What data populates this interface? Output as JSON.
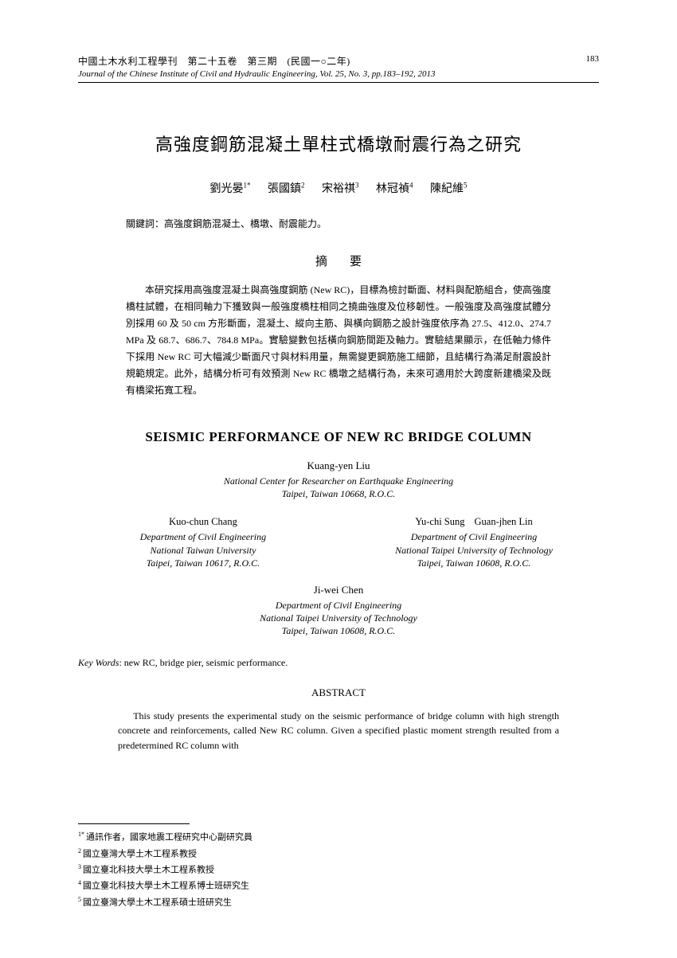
{
  "header": {
    "journal_ch": "中國土木水利工程學刊　第二十五卷　第三期　(民國一○二年)",
    "journal_en": "Journal of the Chinese Institute of Civil and Hydraulic Engineering, Vol. 25, No. 3, pp.183–192, 2013",
    "page_number": "183"
  },
  "title_ch": "高強度鋼筋混凝土單柱式橋墩耐震行為之研究",
  "authors_ch": {
    "a1": "劉光晏",
    "s1": "1*",
    "a2": "張國鎮",
    "s2": "2",
    "a3": "宋裕祺",
    "s3": "3",
    "a4": "林冠禎",
    "s4": "4",
    "a5": "陳紀維",
    "s5": "5"
  },
  "keywords_ch_label": "關鍵詞：",
  "keywords_ch": "高強度鋼筋混凝土、橋墩、耐震能力。",
  "abstract_ch_heading": "摘要",
  "abstract_ch": "本研究採用高強度混凝土與高強度鋼筋 (New RC)，目標為檢討斷面、材料與配筋組合，使高強度橋柱試體，在相同軸力下獲致與一般強度橋柱相同之撓曲強度及位移韌性。一般強度及高強度試體分別採用 60 及 50 cm 方形斷面，混凝土、縱向主筋、與橫向鋼筋之設計強度依序為 27.5、412.0、274.7 MPa 及 68.7、686.7、784.8 MPa。實驗變數包括橫向鋼筋間距及軸力。實驗結果顯示，在低軸力條件下採用 New RC 可大幅減少斷面尺寸與材料用量，無需變更鋼筋施工細節，且結構行為滿足耐震設計規範規定。此外，結構分析可有效預測 New RC 橋墩之結構行為，未來可適用於大跨度新建橋梁及既有橋梁拓寬工程。",
  "title_en": "SEISMIC PERFORMANCE OF NEW RC BRIDGE COLUMN",
  "author_en_1": {
    "name": "Kuang-yen Liu",
    "affil1": "National Center for Researcher on Earthquake Engineering",
    "affil2": "Taipei, Taiwan 10668, R.O.C."
  },
  "author_en_left": {
    "name": "Kuo-chun Chang",
    "affil1": "Department of Civil Engineering",
    "affil2": "National Taiwan University",
    "affil3": "Taipei, Taiwan 10617, R.O.C."
  },
  "author_en_right": {
    "name1": "Yu-chi Sung",
    "name2": "Guan-jhen Lin",
    "affil1": "Department of Civil Engineering",
    "affil2": "National Taipei University of Technology",
    "affil3": "Taipei, Taiwan 10608, R.O.C."
  },
  "author_en_4": {
    "name": "Ji-wei Chen",
    "affil1": "Department of Civil Engineering",
    "affil2": "National Taipei University of Technology",
    "affil3": "Taipei, Taiwan 10608, R.O.C."
  },
  "keywords_en_label": "Key Words",
  "keywords_en": ": new RC, bridge pier, seismic performance.",
  "abstract_en_heading": "ABSTRACT",
  "abstract_en": "This study presents the experimental study on the seismic performance of bridge column with high strength concrete and reinforcements, called New RC column.  Given a specified plastic moment strength resulted from a predetermined RC column with",
  "footnotes": {
    "f1s": "1*",
    "f1": "通訊作者，國家地震工程研究中心副研究員",
    "f2s": "2",
    "f2": "國立臺灣大學土木工程系教授",
    "f3s": "3",
    "f3": "國立臺北科技大學土木工程系教授",
    "f4s": "4",
    "f4": "國立臺北科技大學土木工程系博士班研究生",
    "f5s": "5",
    "f5": "國立臺灣大學土木工程系碩士班研究生"
  }
}
